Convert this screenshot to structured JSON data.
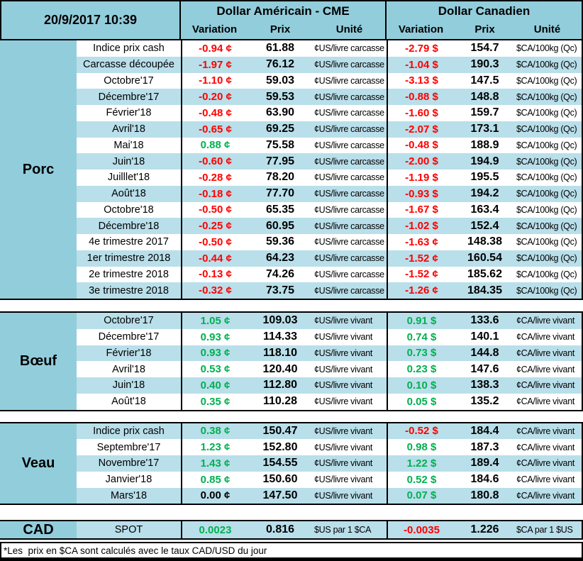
{
  "meta": {
    "datetime": "20/9/2017 10:39"
  },
  "palette": {
    "medium_blue": "#92CDDC",
    "light_blue": "#B9DFEA",
    "negative_red": "#FF0000",
    "positive_green": "#00B050"
  },
  "header": {
    "us_title": "Dollar Américain - CME",
    "ca_title": "Dollar Canadien",
    "columns": {
      "variation": "Variation",
      "prix": "Prix",
      "unite": "Unité"
    }
  },
  "sections": [
    {
      "label": "Porc",
      "first_stripe": "white",
      "rows": [
        {
          "label": "Indice prix cash",
          "us_var": "-0.94 ¢",
          "us_var_color": "red",
          "us_prix": "61.88",
          "us_unit": "¢US/livre carcasse",
          "ca_var": "-2.79 $",
          "ca_var_color": "red",
          "ca_prix": "154.7",
          "ca_unit": "$CA/100kg (Qc)"
        },
        {
          "label": "Carcasse découpée",
          "us_var": "-1.97 ¢",
          "us_var_color": "red",
          "us_prix": "76.12",
          "us_unit": "¢US/livre carcasse",
          "ca_var": "-1.04 $",
          "ca_var_color": "red",
          "ca_prix": "190.3",
          "ca_unit": "$CA/100kg (Qc)"
        },
        {
          "label": "Octobre'17",
          "us_var": "-1.10 ¢",
          "us_var_color": "red",
          "us_prix": "59.03",
          "us_unit": "¢US/livre carcasse",
          "ca_var": "-3.13 $",
          "ca_var_color": "red",
          "ca_prix": "147.5",
          "ca_unit": "$CA/100kg (Qc)"
        },
        {
          "label": "Décembre'17",
          "us_var": "-0.20 ¢",
          "us_var_color": "red",
          "us_prix": "59.53",
          "us_unit": "¢US/livre carcasse",
          "ca_var": "-0.88 $",
          "ca_var_color": "red",
          "ca_prix": "148.8",
          "ca_unit": "$CA/100kg (Qc)"
        },
        {
          "label": "Février'18",
          "us_var": "-0.48 ¢",
          "us_var_color": "red",
          "us_prix": "63.90",
          "us_unit": "¢US/livre carcasse",
          "ca_var": "-1.60 $",
          "ca_var_color": "red",
          "ca_prix": "159.7",
          "ca_unit": "$CA/100kg (Qc)"
        },
        {
          "label": "Avril'18",
          "us_var": "-0.65 ¢",
          "us_var_color": "red",
          "us_prix": "69.25",
          "us_unit": "¢US/livre carcasse",
          "ca_var": "-2.07 $",
          "ca_var_color": "red",
          "ca_prix": "173.1",
          "ca_unit": "$CA/100kg (Qc)"
        },
        {
          "label": "Mai'18",
          "us_var": "0.88 ¢",
          "us_var_color": "green",
          "us_prix": "75.58",
          "us_unit": "¢US/livre carcasse",
          "ca_var": "-0.48 $",
          "ca_var_color": "red",
          "ca_prix": "188.9",
          "ca_unit": "$CA/100kg (Qc)"
        },
        {
          "label": "Juin'18",
          "us_var": "-0.60 ¢",
          "us_var_color": "red",
          "us_prix": "77.95",
          "us_unit": "¢US/livre carcasse",
          "ca_var": "-2.00 $",
          "ca_var_color": "red",
          "ca_prix": "194.9",
          "ca_unit": "$CA/100kg (Qc)"
        },
        {
          "label": "Juilllet'18",
          "us_var": "-0.28 ¢",
          "us_var_color": "red",
          "us_prix": "78.20",
          "us_unit": "¢US/livre carcasse",
          "ca_var": "-1.19 $",
          "ca_var_color": "red",
          "ca_prix": "195.5",
          "ca_unit": "$CA/100kg (Qc)"
        },
        {
          "label": "Août'18",
          "us_var": "-0.18 ¢",
          "us_var_color": "red",
          "us_prix": "77.70",
          "us_unit": "¢US/livre carcasse",
          "ca_var": "-0.93 $",
          "ca_var_color": "red",
          "ca_prix": "194.2",
          "ca_unit": "$CA/100kg (Qc)"
        },
        {
          "label": "Octobre'18",
          "us_var": "-0.50 ¢",
          "us_var_color": "red",
          "us_prix": "65.35",
          "us_unit": "¢US/livre carcasse",
          "ca_var": "-1.67 $",
          "ca_var_color": "red",
          "ca_prix": "163.4",
          "ca_unit": "$CA/100kg (Qc)"
        },
        {
          "label": "Décembre'18",
          "us_var": "-0.25 ¢",
          "us_var_color": "red",
          "us_prix": "60.95",
          "us_unit": "¢US/livre carcasse",
          "ca_var": "-1.02 $",
          "ca_var_color": "red",
          "ca_prix": "152.4",
          "ca_unit": "$CA/100kg (Qc)"
        },
        {
          "label": "4e trimestre 2017",
          "us_var": "-0.50 ¢",
          "us_var_color": "red",
          "us_prix": "59.36",
          "us_unit": "¢US/livre carcasse",
          "ca_var": "-1.63 ¢",
          "ca_var_color": "red",
          "ca_prix": "148.38",
          "ca_unit": "$CA/100kg (Qc)"
        },
        {
          "label": "1er trimestre 2018",
          "us_var": "-0.44 ¢",
          "us_var_color": "red",
          "us_prix": "64.23",
          "us_unit": "¢US/livre carcasse",
          "ca_var": "-1.52 ¢",
          "ca_var_color": "red",
          "ca_prix": "160.54",
          "ca_unit": "$CA/100kg (Qc)"
        },
        {
          "label": "2e trimestre 2018",
          "us_var": "-0.13 ¢",
          "us_var_color": "red",
          "us_prix": "74.26",
          "us_unit": "¢US/livre carcasse",
          "ca_var": "-1.52 ¢",
          "ca_var_color": "red",
          "ca_prix": "185.62",
          "ca_unit": "$CA/100kg (Qc)"
        },
        {
          "label": "3e trimestre 2018",
          "us_var": "-0.32 ¢",
          "us_var_color": "red",
          "us_prix": "73.75",
          "us_unit": "¢US/livre carcasse",
          "ca_var": "-1.26 ¢",
          "ca_var_color": "red",
          "ca_prix": "184.35",
          "ca_unit": "$CA/100kg (Qc)"
        }
      ]
    },
    {
      "label": "Bœuf",
      "first_stripe": "blue",
      "rows": [
        {
          "label": "Octobre'17",
          "us_var": "1.05 ¢",
          "us_var_color": "green",
          "us_prix": "109.03",
          "us_unit": "¢US/livre vivant",
          "ca_var": "0.91 $",
          "ca_var_color": "green",
          "ca_prix": "133.6",
          "ca_unit": "¢CA/livre vivant"
        },
        {
          "label": "Décembre'17",
          "us_var": "0.93 ¢",
          "us_var_color": "green",
          "us_prix": "114.33",
          "us_unit": "¢US/livre vivant",
          "ca_var": "0.74 $",
          "ca_var_color": "green",
          "ca_prix": "140.1",
          "ca_unit": "¢CA/livre vivant"
        },
        {
          "label": "Février'18",
          "us_var": "0.93 ¢",
          "us_var_color": "green",
          "us_prix": "118.10",
          "us_unit": "¢US/livre vivant",
          "ca_var": "0.73 $",
          "ca_var_color": "green",
          "ca_prix": "144.8",
          "ca_unit": "¢CA/livre vivant"
        },
        {
          "label": "Avril'18",
          "us_var": "0.53 ¢",
          "us_var_color": "green",
          "us_prix": "120.40",
          "us_unit": "¢US/livre vivant",
          "ca_var": "0.23 $",
          "ca_var_color": "green",
          "ca_prix": "147.6",
          "ca_unit": "¢CA/livre vivant"
        },
        {
          "label": "Juin'18",
          "us_var": "0.40 ¢",
          "us_var_color": "green",
          "us_prix": "112.80",
          "us_unit": "¢US/livre vivant",
          "ca_var": "0.10 $",
          "ca_var_color": "green",
          "ca_prix": "138.3",
          "ca_unit": "¢CA/livre vivant"
        },
        {
          "label": "Août'18",
          "us_var": "0.35 ¢",
          "us_var_color": "green",
          "us_prix": "110.28",
          "us_unit": "¢US/livre vivant",
          "ca_var": "0.05 $",
          "ca_var_color": "green",
          "ca_prix": "135.2",
          "ca_unit": "¢CA/livre vivant"
        }
      ]
    },
    {
      "label": "Veau",
      "first_stripe": "blue",
      "rows": [
        {
          "label": "Indice prix cash",
          "us_var": "0.38 ¢",
          "us_var_color": "green",
          "us_prix": "150.47",
          "us_unit": "¢US/livre vivant",
          "ca_var": "-0.52 $",
          "ca_var_color": "red",
          "ca_prix": "184.4",
          "ca_unit": "¢CA/livre vivant"
        },
        {
          "label": "Septembre'17",
          "us_var": "1.23 ¢",
          "us_var_color": "green",
          "us_prix": "152.80",
          "us_unit": "¢US/livre vivant",
          "ca_var": "0.98 $",
          "ca_var_color": "green",
          "ca_prix": "187.3",
          "ca_unit": "¢CA/livre vivant"
        },
        {
          "label": "Novembre'17",
          "us_var": "1.43 ¢",
          "us_var_color": "green",
          "us_prix": "154.55",
          "us_unit": "¢US/livre vivant",
          "ca_var": "1.22 $",
          "ca_var_color": "green",
          "ca_prix": "189.4",
          "ca_unit": "¢CA/livre vivant"
        },
        {
          "label": "Janvier'18",
          "us_var": "0.85 ¢",
          "us_var_color": "green",
          "us_prix": "150.60",
          "us_unit": "¢US/livre vivant",
          "ca_var": "0.52 $",
          "ca_var_color": "green",
          "ca_prix": "184.6",
          "ca_unit": "¢CA/livre vivant"
        },
        {
          "label": "Mars'18",
          "us_var": "0.00 ¢",
          "us_var_color": "black",
          "us_prix": "147.50",
          "us_unit": "¢US/livre vivant",
          "ca_var": "0.07 $",
          "ca_var_color": "green",
          "ca_prix": "180.8",
          "ca_unit": "¢CA/livre vivant"
        }
      ]
    }
  ],
  "cad": {
    "label": "CAD",
    "sublabel": "SPOT",
    "us_var": "0.0023",
    "us_var_color": "green",
    "us_prix": "0.816",
    "us_unit": "$US par 1 $CA",
    "ca_var": "-0.0035",
    "ca_var_color": "red",
    "ca_prix": "1.226",
    "ca_unit": "$CA par 1 $US"
  },
  "footnote": "*Les  prix en $CA sont calculés avec le taux CAD/USD du jour"
}
